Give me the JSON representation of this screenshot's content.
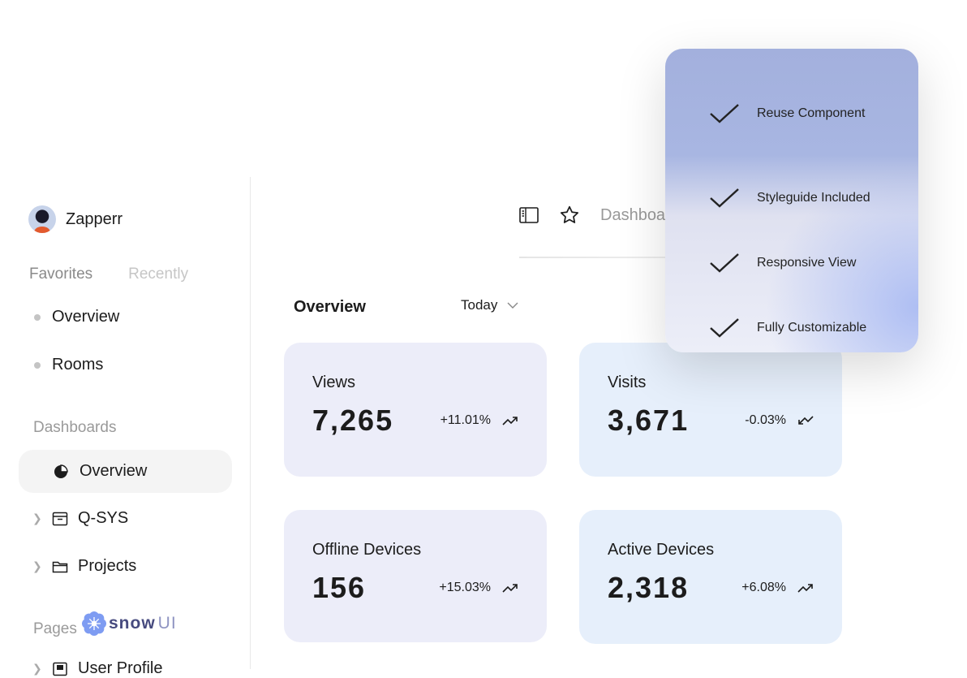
{
  "sidebar": {
    "user": {
      "name": "Zapperr"
    },
    "tabs": {
      "favorites": "Favorites",
      "recently": "Recently"
    },
    "favorites": [
      {
        "label": "Overview"
      },
      {
        "label": "Rooms"
      }
    ],
    "dashboards_heading": "Dashboards",
    "dashboards": [
      {
        "label": "Overview",
        "icon": "pie-chart-icon",
        "active": true
      },
      {
        "label": "Q-SYS",
        "icon": "archive-box-icon"
      },
      {
        "label": "Projects",
        "icon": "folder-icon"
      }
    ],
    "pages_heading": "Pages",
    "pages": [
      {
        "label": "User Profile"
      }
    ]
  },
  "topbar": {
    "breadcrumb": "Dashboards"
  },
  "overview": {
    "title": "Overview",
    "period": "Today"
  },
  "cards": [
    {
      "label": "Views",
      "value": "7,265",
      "change": "+11.01%",
      "trend": "up"
    },
    {
      "label": "Visits",
      "value": "3,671",
      "change": "-0.03%",
      "trend": "down"
    },
    {
      "label": "Offline Devices",
      "value": "156",
      "change": "+15.03%",
      "trend": "up"
    },
    {
      "label": "Active Devices",
      "value": "2,318",
      "change": "+6.08%",
      "trend": "up"
    }
  ],
  "features": [
    "Reuse Component",
    "Styleguide Included",
    "Responsive View",
    "Fully Customizable"
  ],
  "logo": {
    "text": "snow",
    "accent": "UI"
  }
}
